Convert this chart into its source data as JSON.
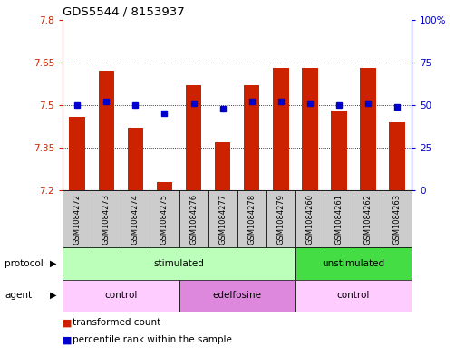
{
  "title": "GDS5544 / 8153937",
  "samples": [
    "GSM1084272",
    "GSM1084273",
    "GSM1084274",
    "GSM1084275",
    "GSM1084276",
    "GSM1084277",
    "GSM1084278",
    "GSM1084279",
    "GSM1084260",
    "GSM1084261",
    "GSM1084262",
    "GSM1084263"
  ],
  "transformed_count": [
    7.46,
    7.62,
    7.42,
    7.23,
    7.57,
    7.37,
    7.57,
    7.63,
    7.63,
    7.48,
    7.63,
    7.44
  ],
  "percentile_rank": [
    50,
    52,
    50,
    45,
    51,
    48,
    52,
    52,
    51,
    50,
    51,
    49
  ],
  "ylim_left": [
    7.2,
    7.8
  ],
  "ylim_right": [
    0,
    100
  ],
  "yticks_left": [
    7.2,
    7.35,
    7.5,
    7.65,
    7.8
  ],
  "ytick_labels_left": [
    "7.2",
    "7.35",
    "7.5",
    "7.65",
    "7.8"
  ],
  "yticks_right": [
    0,
    25,
    50,
    75,
    100
  ],
  "ytick_labels_right": [
    "0",
    "25",
    "50",
    "75",
    "100%"
  ],
  "grid_yticks": [
    7.35,
    7.5,
    7.65
  ],
  "bar_color": "#cc2200",
  "dot_color": "#0000cc",
  "protocol_groups": [
    {
      "label": "stimulated",
      "start": 0,
      "end": 8,
      "color": "#bbffbb"
    },
    {
      "label": "unstimulated",
      "start": 8,
      "end": 12,
      "color": "#44dd44"
    }
  ],
  "agent_groups": [
    {
      "label": "control",
      "start": 0,
      "end": 4,
      "color": "#ffccff"
    },
    {
      "label": "edelfosine",
      "start": 4,
      "end": 8,
      "color": "#dd88dd"
    },
    {
      "label": "control",
      "start": 8,
      "end": 12,
      "color": "#ffccff"
    }
  ],
  "legend_items": [
    {
      "label": "transformed count",
      "color": "#cc2200"
    },
    {
      "label": "percentile rank within the sample",
      "color": "#0000cc"
    }
  ],
  "left_axis_color": "#cc2200",
  "right_axis_color": "#0000cc",
  "protocol_label": "protocol",
  "agent_label": "agent",
  "sample_box_color": "#cccccc",
  "bar_width": 0.55
}
